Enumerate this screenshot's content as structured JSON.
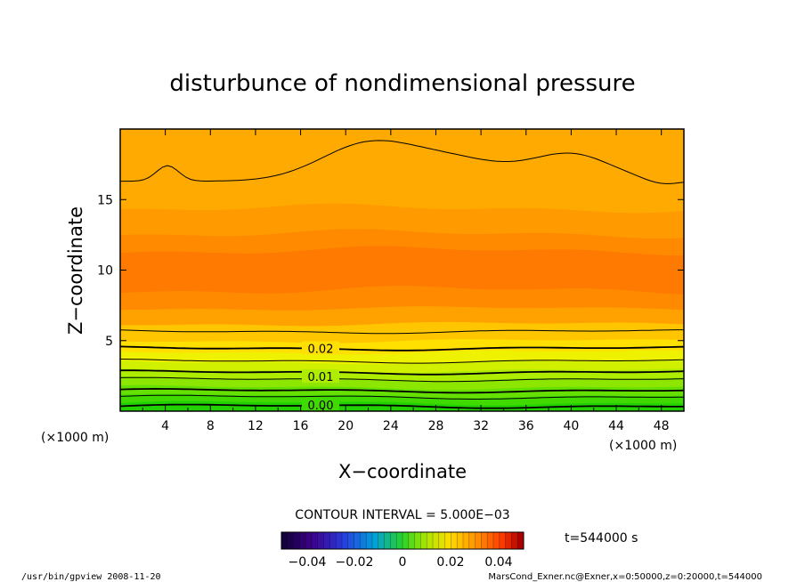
{
  "chart_data": {
    "type": "contour",
    "title": "disturbunce of nondimensional pressure",
    "xlabel": "X−coordinate",
    "ylabel": "Z−coordinate",
    "x_unit": "(×1000 m)",
    "y_unit": "(×1000 m)",
    "xlim": [
      0,
      50
    ],
    "ylim": [
      0,
      20
    ],
    "x_ticks": [
      4,
      8,
      12,
      16,
      20,
      24,
      28,
      32,
      36,
      40,
      44,
      48
    ],
    "y_ticks": [
      5,
      10,
      15
    ],
    "contour_interval": "CONTOUR INTERVAL = 5.000E−03",
    "contour_labels": [
      "0.02",
      "0.01",
      "0.00"
    ],
    "contour_label_values": [
      0.02,
      0.01,
      0.0
    ],
    "time_label": "t=544000 s",
    "colorbar": {
      "ticks": [
        "−0.04",
        "−0.02",
        "0",
        "0.02",
        "0.04"
      ],
      "range": [
        -0.05,
        0.05
      ]
    },
    "footer_left": "/usr/bin/gpview   2008-11-20",
    "footer_right": "MarsCond_Exner.nc@Exner,x=0:50000,z=0:20000,t=544000",
    "field_bands": [
      {
        "z": [
          0.0,
          0.6
        ],
        "color": "#22d200"
      },
      {
        "z": [
          0.6,
          1.1
        ],
        "color": "#40da00"
      },
      {
        "z": [
          1.1,
          1.7
        ],
        "color": "#66e000"
      },
      {
        "z": [
          1.7,
          2.3
        ],
        "color": "#8ce600"
      },
      {
        "z": [
          2.3,
          2.9
        ],
        "color": "#aeec00"
      },
      {
        "z": [
          2.9,
          3.5
        ],
        "color": "#d0f000"
      },
      {
        "z": [
          3.5,
          4.2
        ],
        "color": "#eef200"
      },
      {
        "z": [
          4.2,
          5.0
        ],
        "color": "#ffe000"
      },
      {
        "z": [
          5.0,
          6.2
        ],
        "color": "#ffc600"
      },
      {
        "z": [
          6.2,
          7.3
        ],
        "color": "#ffa200"
      },
      {
        "z": [
          7.3,
          8.6
        ],
        "color": "#ff8a00"
      },
      {
        "z": [
          8.6,
          11.4
        ],
        "color": "#ff7a00"
      },
      {
        "z": [
          11.4,
          12.6
        ],
        "color": "#ff8a00"
      },
      {
        "z": [
          12.6,
          14.4
        ],
        "color": "#ff9a00"
      },
      {
        "z": [
          14.4,
          20.0
        ],
        "color": "#ffaa00"
      }
    ]
  }
}
